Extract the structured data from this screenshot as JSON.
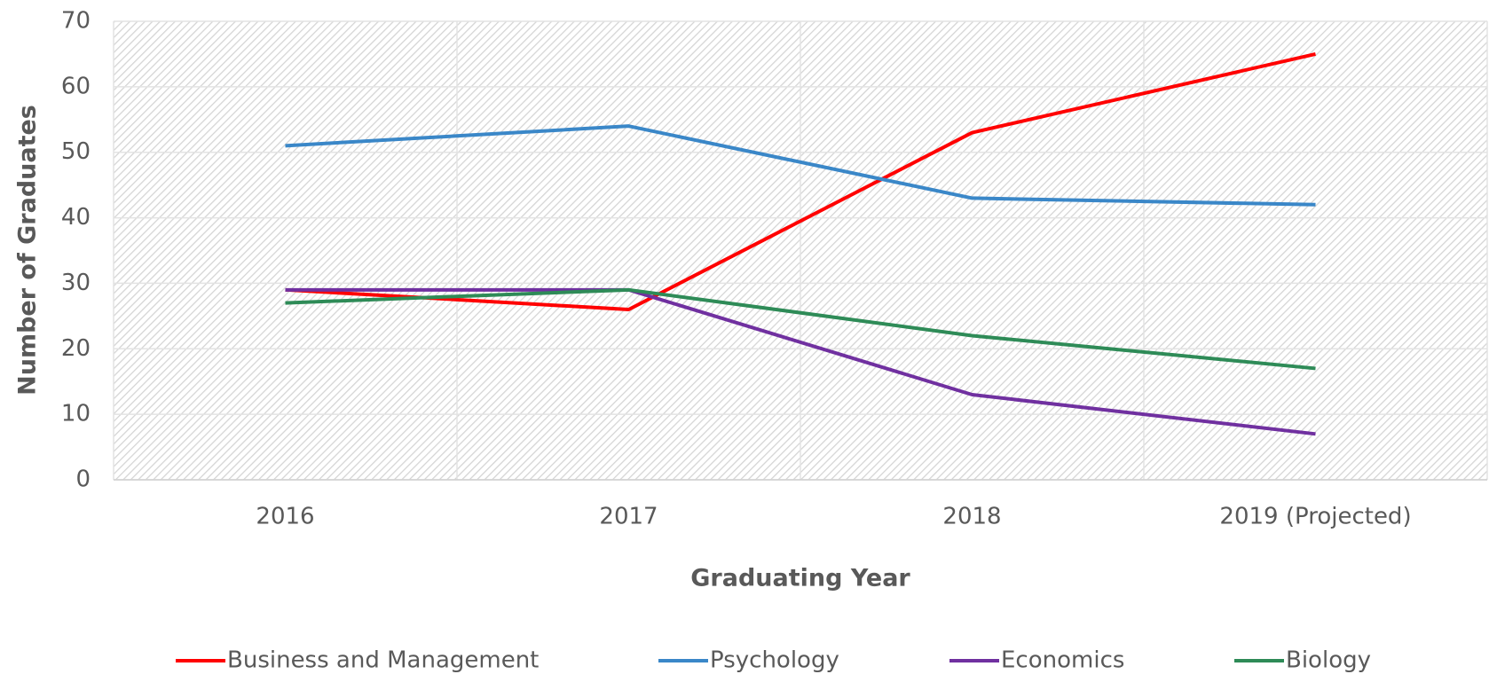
{
  "chart_data": {
    "type": "line",
    "x_label": "Graduating Year",
    "y_label": "Number of Graduates",
    "categories": [
      "2016",
      "2017",
      "2018",
      "2019 (Projected)"
    ],
    "series": [
      {
        "name": "Business and Management",
        "color": "#ff0000",
        "values": [
          29,
          26,
          53,
          65
        ]
      },
      {
        "name": "Psychology",
        "color": "#3a87c8",
        "values": [
          51,
          54,
          43,
          42
        ]
      },
      {
        "name": "Economics",
        "color": "#7030a0",
        "values": [
          29,
          29,
          13,
          7
        ]
      },
      {
        "name": "Biology",
        "color": "#2e8b57",
        "values": [
          27,
          29,
          22,
          17
        ]
      }
    ],
    "ylim": [
      0,
      70
    ],
    "yticks": [
      0,
      10,
      20,
      30,
      40,
      50,
      60,
      70
    ],
    "grid": true,
    "legend": "bottom"
  }
}
